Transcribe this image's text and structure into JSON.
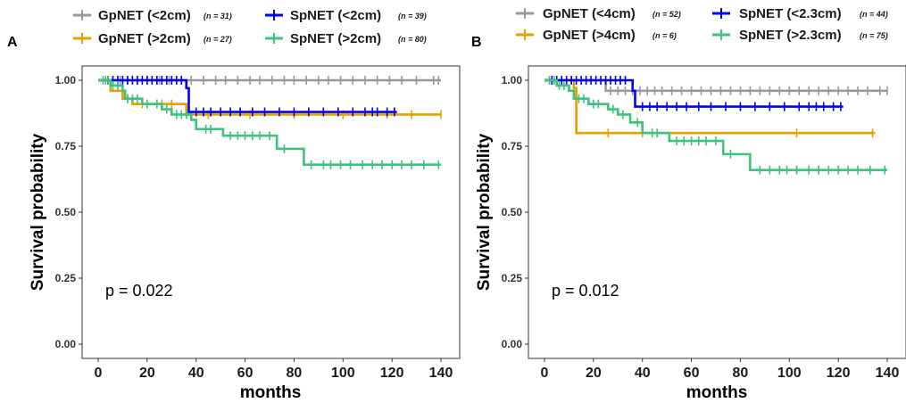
{
  "chart_data": [
    {
      "panel_label": "A",
      "type": "line",
      "step": true,
      "xlabel": "months",
      "ylabel": "Survival probability",
      "xlim": [
        0,
        140
      ],
      "ylim": [
        0,
        1
      ],
      "x_ticks": [
        "0",
        "20",
        "40",
        "60",
        "80",
        "100",
        "120",
        "140"
      ],
      "y_ticks": [
        "0.00",
        "0.25",
        "0.50",
        "0.75",
        "1.00"
      ],
      "annotation": "p = 0.022",
      "legend_position": "top",
      "series": [
        {
          "name": "GpNET  (<2cm)",
          "n_label": "(n = 31)",
          "color": "#999999",
          "steps": [
            [
              0,
              1.0
            ],
            [
              140,
              1.0
            ]
          ],
          "censor": [
            3,
            6,
            9,
            12,
            16,
            20,
            25,
            29,
            34,
            38,
            43,
            48,
            52,
            57,
            62,
            66,
            71,
            76,
            80,
            85,
            90,
            94,
            99,
            104,
            109,
            114,
            119,
            124,
            130,
            137,
            139
          ]
        },
        {
          "name": "GpNET  (>2cm)",
          "n_label": "(n = 27)",
          "color": "#E69F00",
          "steps": [
            [
              0,
              1.0
            ],
            [
              5,
              0.96
            ],
            [
              10,
              0.93
            ],
            [
              14,
              0.91
            ],
            [
              36,
              0.87
            ],
            [
              140,
              0.87
            ]
          ],
          "censor": [
            12,
            18,
            26,
            30,
            45,
            62,
            80,
            100,
            118,
            128,
            140
          ]
        },
        {
          "name": "SpNET  (<2cm)",
          "n_label": "(n = 39)",
          "color": "#0000EE",
          "steps": [
            [
              0,
              1.0
            ],
            [
              36,
              0.97
            ],
            [
              37,
              0.88
            ],
            [
              122,
              0.88
            ]
          ],
          "censor": [
            4,
            6,
            8,
            10,
            12,
            14,
            16,
            18,
            20,
            22,
            24,
            26,
            28,
            30,
            32,
            34,
            40,
            43,
            46,
            50,
            54,
            58,
            63,
            68,
            74,
            80,
            86,
            92,
            98,
            104,
            109,
            112,
            114,
            118,
            121
          ]
        },
        {
          "name": "SpNET  (>2cm)",
          "n_label": "(n = 80)",
          "color": "#3CC47A",
          "steps": [
            [
              0,
              1.0
            ],
            [
              5,
              0.98
            ],
            [
              10,
              0.96
            ],
            [
              11,
              0.93
            ],
            [
              18,
              0.91
            ],
            [
              26,
              0.89
            ],
            [
              30,
              0.87
            ],
            [
              38,
              0.85
            ],
            [
              40,
              0.815
            ],
            [
              51,
              0.79
            ],
            [
              73,
              0.74
            ],
            [
              84,
              0.68
            ],
            [
              140,
              0.68
            ]
          ],
          "censor": [
            2,
            4,
            6,
            8,
            12,
            14,
            16,
            20,
            24,
            28,
            32,
            34,
            36,
            44,
            46,
            54,
            57,
            60,
            63,
            66,
            70,
            76,
            87,
            92,
            95,
            99,
            103,
            108,
            112,
            116,
            120,
            124,
            128,
            133,
            139
          ]
        }
      ]
    },
    {
      "panel_label": "B",
      "type": "line",
      "step": true,
      "xlabel": "months",
      "ylabel": "Survival probability",
      "xlim": [
        0,
        140
      ],
      "ylim": [
        0,
        1
      ],
      "x_ticks": [
        "0",
        "20",
        "40",
        "60",
        "80",
        "100",
        "120",
        "140"
      ],
      "y_ticks": [
        "0.00",
        "0.25",
        "0.50",
        "0.75",
        "1.00"
      ],
      "annotation": "p = 0.012",
      "legend_position": "top",
      "series": [
        {
          "name": "GpNET  (<4cm)",
          "n_label": "(n = 52)",
          "color": "#999999",
          "steps": [
            [
              0,
              1.0
            ],
            [
              25,
              0.96
            ],
            [
              140,
              0.96
            ]
          ],
          "censor": [
            27,
            30,
            33,
            36,
            39,
            42,
            45,
            48,
            52,
            56,
            60,
            64,
            68,
            72,
            76,
            80,
            84,
            88,
            92,
            96,
            100,
            104,
            108,
            112,
            116,
            120,
            124,
            128,
            132,
            137,
            140
          ]
        },
        {
          "name": "GpNET  (>4cm)",
          "n_label": "(n = 6)",
          "color": "#E69F00",
          "steps": [
            [
              0,
              1.0
            ],
            [
              12,
              0.97
            ],
            [
              13,
              0.8
            ],
            [
              135,
              0.8
            ]
          ],
          "censor": [
            26,
            40,
            103,
            134
          ]
        },
        {
          "name": "SpNET  (<2.3cm)",
          "n_label": "(n = 44)",
          "color": "#0000EE",
          "steps": [
            [
              0,
              1.0
            ],
            [
              36,
              0.96
            ],
            [
              37,
              0.9
            ],
            [
              122,
              0.9
            ]
          ],
          "censor": [
            3,
            5,
            7,
            9,
            11,
            13,
            15,
            17,
            19,
            21,
            23,
            25,
            27,
            29,
            31,
            33,
            40,
            43,
            46,
            50,
            54,
            58,
            63,
            68,
            74,
            80,
            86,
            92,
            98,
            104,
            108,
            111,
            114,
            118,
            121
          ]
        },
        {
          "name": "SpNET  (>2.3cm)",
          "n_label": "(n = 75)",
          "color": "#3CC47A",
          "steps": [
            [
              0,
              1.0
            ],
            [
              5,
              0.98
            ],
            [
              10,
              0.96
            ],
            [
              12,
              0.93
            ],
            [
              18,
              0.91
            ],
            [
              26,
              0.89
            ],
            [
              30,
              0.87
            ],
            [
              35,
              0.84
            ],
            [
              40,
              0.8
            ],
            [
              51,
              0.77
            ],
            [
              73,
              0.72
            ],
            [
              84,
              0.66
            ],
            [
              140,
              0.66
            ]
          ],
          "censor": [
            2,
            4,
            6,
            8,
            14,
            16,
            20,
            22,
            28,
            32,
            38,
            44,
            46,
            54,
            57,
            60,
            63,
            66,
            70,
            76,
            88,
            92,
            96,
            99,
            103,
            108,
            112,
            116,
            120,
            124,
            128,
            133,
            139
          ]
        }
      ]
    }
  ]
}
